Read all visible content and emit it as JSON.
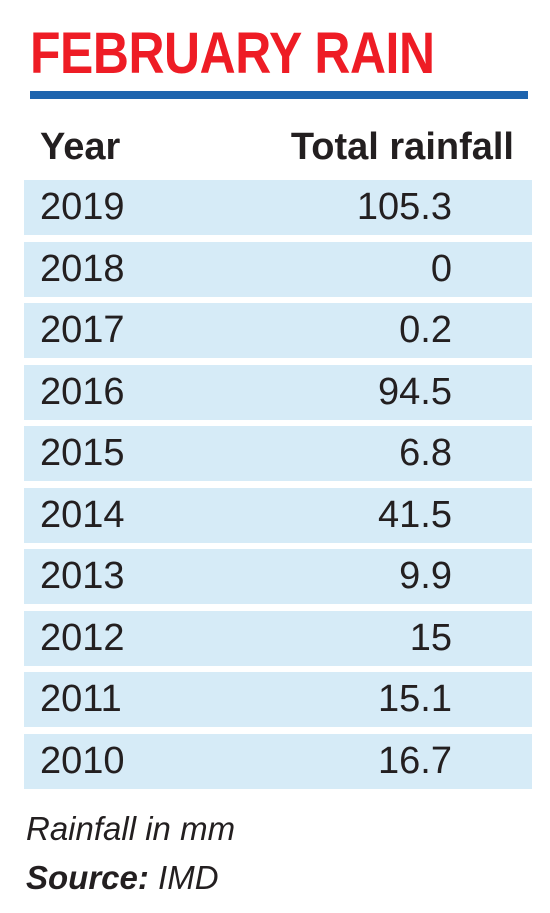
{
  "colors": {
    "title": "#ee1c25",
    "rule": "#1e64ae",
    "row_background": "#d6ebf7",
    "text": "#231f20"
  },
  "chart_data": {
    "type": "table",
    "title": "FEBRUARY RAIN",
    "columns": [
      "Year",
      "Total rainfall"
    ],
    "rows": [
      {
        "year": "2019",
        "total": "105.3"
      },
      {
        "year": "2018",
        "total": "0"
      },
      {
        "year": "2017",
        "total": "0.2"
      },
      {
        "year": "2016",
        "total": "94.5"
      },
      {
        "year": "2015",
        "total": "6.8"
      },
      {
        "year": "2014",
        "total": "41.5"
      },
      {
        "year": "2013",
        "total": "9.9"
      },
      {
        "year": "2012",
        "total": "15"
      },
      {
        "year": "2011",
        "total": "15.1"
      },
      {
        "year": "2010",
        "total": "16.7"
      }
    ],
    "note": "Rainfall in mm",
    "source_label": "Source:",
    "source_value": "IMD"
  }
}
